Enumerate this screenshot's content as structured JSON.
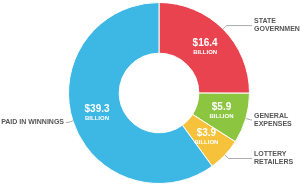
{
  "chart_data": {
    "type": "doughnut",
    "categories": [
      "STATE GOVERNMENTS",
      "GENERAL EXPENSES",
      "LOTTERY RETAILERS",
      "PAID IN WINNINGS"
    ],
    "values": [
      16.4,
      5.9,
      3.9,
      39.3
    ],
    "value_labels": [
      "$16.4 BILLION",
      "$5.9 BILLION",
      "$3.9 BILLION",
      "$39.3 BILLION"
    ],
    "colors": [
      "#e8434f",
      "#8cc540",
      "#f6c23b",
      "#3db7e4"
    ],
    "data_labels": true
  }
}
